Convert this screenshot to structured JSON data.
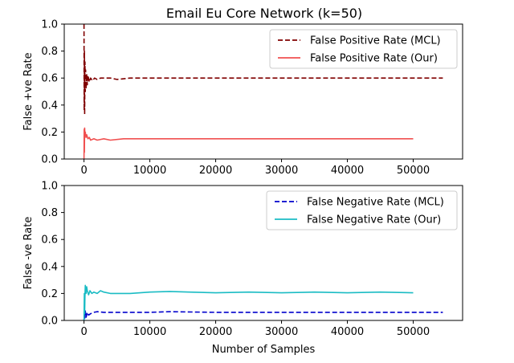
{
  "chart_data": {
    "title": "Email Eu Core Network (k=50)",
    "panels": [
      {
        "type": "line",
        "ylabel": "False +ve Rate",
        "xlabel": "",
        "xlim": [
          -3000,
          57500
        ],
        "ylim": [
          0,
          1.0
        ],
        "xticks": [
          0,
          10000,
          20000,
          30000,
          40000,
          50000
        ],
        "yticks": [
          0.0,
          0.2,
          0.4,
          0.6,
          0.8,
          1.0
        ],
        "xtick_labels": [
          "0",
          "10000",
          "20000",
          "30000",
          "40000",
          "50000"
        ],
        "ytick_labels": [
          "0.0",
          "0.2",
          "0.4",
          "0.6",
          "0.8",
          "1.0"
        ],
        "legend_position": "top-right",
        "series": [
          {
            "name": "False Positive Rate (MCL)",
            "color": "#800000",
            "style": "dashed",
            "x": [
              0,
              30,
              60,
              100,
              150,
              200,
              250,
              300,
              400,
              500,
              600,
              800,
              1000,
              1300,
              1600,
              2000,
              2500,
              3000,
              4000,
              5000,
              7000,
              10000,
              15000,
              20000,
              30000,
              40000,
              50000,
              54500
            ],
            "y": [
              1.0,
              0.36,
              0.8,
              0.33,
              0.72,
              0.5,
              0.66,
              0.52,
              0.63,
              0.55,
              0.62,
              0.57,
              0.6,
              0.58,
              0.6,
              0.59,
              0.6,
              0.6,
              0.6,
              0.59,
              0.6,
              0.6,
              0.6,
              0.6,
              0.6,
              0.6,
              0.6,
              0.6
            ]
          },
          {
            "name": "False Positive Rate (Our)",
            "color": "#f05050",
            "style": "solid",
            "x": [
              0,
              30,
              60,
              100,
              150,
              200,
              300,
              400,
              600,
              800,
              1000,
              1500,
              2000,
              3000,
              4000,
              6000,
              10000,
              15000,
              20000,
              30000,
              40000,
              50000
            ],
            "y": [
              0.0,
              0.22,
              0.05,
              0.23,
              0.18,
              0.2,
              0.16,
              0.18,
              0.15,
              0.16,
              0.14,
              0.15,
              0.14,
              0.15,
              0.14,
              0.15,
              0.15,
              0.15,
              0.15,
              0.15,
              0.15,
              0.15
            ]
          }
        ]
      },
      {
        "type": "line",
        "ylabel": "False -ve Rate",
        "xlabel": "Number of Samples",
        "xlim": [
          -3000,
          57500
        ],
        "ylim": [
          0,
          1.0
        ],
        "xticks": [
          0,
          10000,
          20000,
          30000,
          40000,
          50000
        ],
        "yticks": [
          0.0,
          0.2,
          0.4,
          0.6,
          0.8,
          1.0
        ],
        "xtick_labels": [
          "0",
          "10000",
          "20000",
          "30000",
          "40000",
          "50000"
        ],
        "ytick_labels": [
          "0.0",
          "0.2",
          "0.4",
          "0.6",
          "0.8",
          "1.0"
        ],
        "legend_position": "top-right",
        "series": [
          {
            "name": "False Negative Rate (MCL)",
            "color": "#0000cc",
            "style": "dashed",
            "x": [
              0,
              50,
              100,
              200,
              300,
              500,
              700,
              1000,
              1500,
              2000,
              3000,
              5000,
              10000,
              13000,
              20000,
              30000,
              40000,
              50000,
              54500
            ],
            "y": [
              0.0,
              0.03,
              0.01,
              0.07,
              0.02,
              0.06,
              0.04,
              0.05,
              0.06,
              0.065,
              0.06,
              0.06,
              0.06,
              0.065,
              0.06,
              0.06,
              0.06,
              0.06,
              0.06
            ]
          },
          {
            "name": "False Negative Rate (Our)",
            "color": "#1bbcc4",
            "style": "solid",
            "x": [
              0,
              50,
              100,
              150,
              200,
              300,
              400,
              500,
              700,
              900,
              1200,
              1500,
              2000,
              2500,
              3000,
              4000,
              5000,
              7000,
              10000,
              13000,
              16000,
              20000,
              25000,
              30000,
              35000,
              40000,
              45000,
              50000
            ],
            "y": [
              0.0,
              0.2,
              0.05,
              0.18,
              0.26,
              0.2,
              0.25,
              0.22,
              0.19,
              0.22,
              0.2,
              0.21,
              0.2,
              0.22,
              0.21,
              0.2,
              0.2,
              0.2,
              0.21,
              0.215,
              0.21,
              0.205,
              0.21,
              0.205,
              0.21,
              0.205,
              0.21,
              0.205
            ]
          }
        ]
      }
    ]
  }
}
